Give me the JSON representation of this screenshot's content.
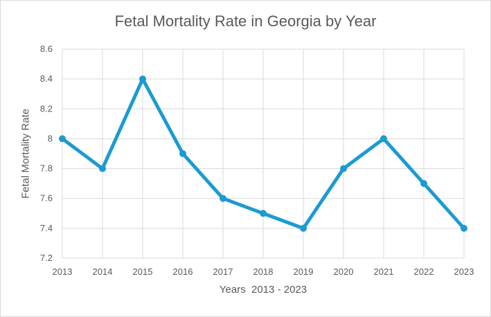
{
  "chart_data": {
    "type": "line",
    "title": "Fetal Mortality Rate in Georgia by Year",
    "xlabel": "Years  2013 - 2023",
    "ylabel": "Fetal Mortality Rate",
    "categories": [
      "2013",
      "2014",
      "2015",
      "2016",
      "2017",
      "2018",
      "2019",
      "2020",
      "2021",
      "2022",
      "2023"
    ],
    "values": [
      8.0,
      7.8,
      8.4,
      7.9,
      7.6,
      7.5,
      7.4,
      7.8,
      8.0,
      7.7,
      7.4
    ],
    "ylim": [
      7.2,
      8.6
    ],
    "yticks": [
      "7.2",
      "7.4",
      "7.6",
      "7.8",
      "8",
      "8.2",
      "8.4",
      "8.6"
    ],
    "grid": true,
    "legend": "none",
    "line_color": "#1b9bd1"
  }
}
